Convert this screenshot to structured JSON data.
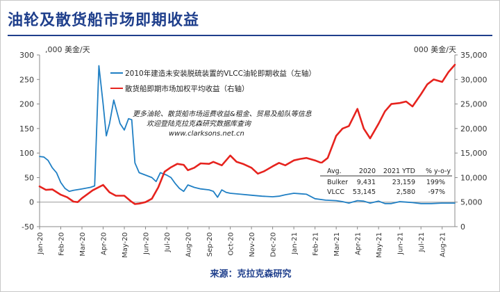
{
  "title": "油轮及散货船市场即期收益",
  "source": "来源：克拉克森研究",
  "colors": {
    "accent": "#1f3f8c",
    "vlcc": "#1f7fc4",
    "bulker": "#e6231e"
  },
  "chart_data": {
    "type": "line",
    "left_axis": {
      "label": ",000 美金/天",
      "ylim": [
        -50,
        300
      ],
      "ticks": [
        -50,
        0,
        50,
        100,
        150,
        200,
        250,
        300
      ]
    },
    "right_axis": {
      "label": "000 美金/天",
      "ylim": [
        0,
        35000
      ],
      "ticks": [
        0,
        5000,
        10000,
        15000,
        20000,
        25000,
        30000,
        35000
      ],
      "tick_labels": [
        "0",
        "5,000",
        "10,000",
        "15,000",
        "20,000",
        "25,000",
        "30,000",
        "35,000"
      ]
    },
    "x_range": [
      0,
      19.6
    ],
    "x_ticks": [
      "Jan-20",
      "Feb-20",
      "Mar-20",
      "Apr-20",
      "May-20",
      "Jun-20",
      "Jul-20",
      "Aug-20",
      "Sep-20",
      "Oct-20",
      "Nov-20",
      "Dec-20",
      "Jan-21",
      "Feb-21",
      "Mar-21",
      "Apr-21",
      "May-21",
      "Jun-21",
      "Jul-21",
      "Aug-21"
    ],
    "grid": false,
    "legend_position": "top-left",
    "series": [
      {
        "name": "2010年建造未安装脱硫装置的VLCC油轮即期收益（左轴）",
        "axis": "left",
        "color": "#1f7fc4",
        "x": [
          0,
          0.2,
          0.4,
          0.6,
          0.8,
          1.0,
          1.2,
          1.4,
          1.6,
          2.0,
          2.4,
          2.6,
          2.8,
          3.0,
          3.15,
          3.3,
          3.5,
          3.8,
          4.0,
          4.2,
          4.35,
          4.5,
          4.7,
          5.0,
          5.3,
          5.5,
          5.7,
          6.0,
          6.2,
          6.4,
          6.6,
          6.8,
          7.0,
          7.3,
          7.6,
          8.0,
          8.2,
          8.4,
          8.6,
          8.8,
          9.0,
          9.5,
          10.0,
          10.5,
          11.0,
          11.3,
          11.6,
          12.0,
          12.3,
          12.6,
          13.0,
          13.5,
          14.0,
          14.3,
          14.6,
          15.0,
          15.3,
          15.6,
          16.0,
          16.3,
          16.6,
          17.0,
          17.3,
          17.6,
          18.0,
          18.5,
          19.0,
          19.6
        ],
        "y": [
          93,
          92,
          85,
          70,
          60,
          40,
          28,
          22,
          24,
          27,
          30,
          33,
          278,
          200,
          135,
          160,
          208,
          160,
          147,
          170,
          168,
          80,
          60,
          55,
          50,
          42,
          60,
          55,
          50,
          38,
          28,
          22,
          35,
          30,
          27,
          25,
          22,
          10,
          25,
          20,
          18,
          16,
          14,
          12,
          11,
          12,
          15,
          18,
          17,
          16,
          7,
          4,
          3,
          1,
          -2,
          3,
          2,
          -2,
          2,
          -3,
          -3,
          1,
          0,
          -1,
          -3,
          -3,
          -2,
          -2
        ]
      },
      {
        "name": "散货船即期市场加权平均收益（右轴）",
        "axis": "right",
        "color": "#e6231e",
        "x": [
          0,
          0.3,
          0.6,
          1.0,
          1.3,
          1.6,
          1.8,
          2.0,
          2.5,
          3.0,
          3.3,
          3.6,
          4.0,
          4.3,
          4.5,
          4.7,
          5.0,
          5.3,
          5.6,
          5.9,
          6.2,
          6.5,
          6.8,
          7.0,
          7.3,
          7.6,
          8.0,
          8.2,
          8.6,
          9.0,
          9.3,
          9.6,
          10.0,
          10.3,
          10.6,
          11.0,
          11.3,
          11.6,
          12.0,
          12.3,
          12.6,
          13.0,
          13.3,
          13.6,
          14.0,
          14.3,
          14.6,
          15.0,
          15.3,
          15.6,
          16.0,
          16.3,
          16.6,
          17.0,
          17.3,
          17.6,
          18.0,
          18.3,
          18.6,
          19.0,
          19.3,
          19.6
        ],
        "y": [
          8200,
          7500,
          7600,
          6500,
          6000,
          5100,
          5000,
          5800,
          7400,
          8500,
          7000,
          6300,
          6300,
          5200,
          4600,
          4700,
          5000,
          5700,
          8000,
          11200,
          12100,
          12800,
          12600,
          11500,
          12000,
          12900,
          12800,
          13200,
          12500,
          14500,
          13200,
          12800,
          12000,
          10800,
          11300,
          12300,
          13000,
          12500,
          13500,
          13800,
          14000,
          13500,
          13000,
          14000,
          18500,
          20000,
          20500,
          24000,
          20000,
          18000,
          21000,
          23500,
          25000,
          25200,
          25500,
          24500,
          27000,
          29000,
          30000,
          29500,
          31500,
          33000
        ]
      }
    ],
    "annotation": {
      "lines": [
        "更多油轮、散货船市场运费收益&租金、贸易及船队等信息",
        "欢迎登陆克拉克森研究数据库查询",
        "www.clarksons.net.cn"
      ]
    },
    "table": {
      "headers": [
        "Avg.",
        "2020",
        "2021 YTD",
        "% y-o-y"
      ],
      "rows": [
        [
          "Bulker",
          "9,431",
          "23,159",
          "199%"
        ],
        [
          "VLCC",
          "53,145",
          "2,580",
          "-97%"
        ]
      ]
    }
  }
}
